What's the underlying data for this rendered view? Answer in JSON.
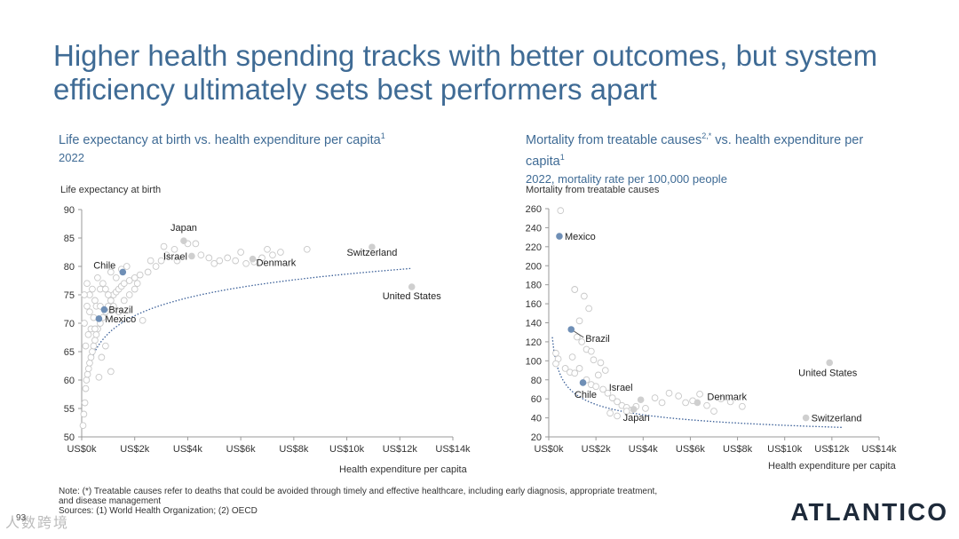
{
  "title_line1": "Higher health spending tracks with better outcomes, but system",
  "title_line2": "efficiency ultimately sets best performers apart",
  "left": {
    "heading": "Life expectancy at birth vs. health expenditure per capita",
    "heading_sup": "1",
    "subheading": "2022",
    "ylabel": "Life expectancy at birth",
    "xlabel": "Health expenditure per capita"
  },
  "right": {
    "heading": "Mortality from treatable causes",
    "heading_sup": "2,*",
    "heading_rest": " vs. health expenditure per",
    "heading_line2": "capita",
    "heading_line2_sup": "1",
    "subheading": "2022, mortality rate per 100,000 people",
    "ylabel": "Mortality from treatable causes",
    "xlabel": "Health expenditure per capita"
  },
  "note_line1": "Note: (*) Treatable causes refer to deaths that could be avoided through timely and effective healthcare, including early diagnosis, appropriate treatment,",
  "note_line2": "and disease management",
  "note_line3": "Sources: (1) World Health Organization; (2) OECD",
  "page_number": "93",
  "logo": "ATLANTICO",
  "watermark": "人数跨境",
  "colors": {
    "title": "#3f6b95",
    "highlight": "#6f8fb6",
    "label_gray": "#cfcfcf",
    "trend": "#3a5f98"
  },
  "chart_data": [
    {
      "type": "scatter",
      "xlabel": "Health expenditure per capita",
      "ylabel": "Life expectancy at birth",
      "xlim": [
        0,
        14000
      ],
      "ylim": [
        50,
        90
      ],
      "x_ticks": [
        "US$0k",
        "US$2k",
        "US$4k",
        "US$6k",
        "US$8k",
        "US$10k",
        "US$12k",
        "US$14k"
      ],
      "y_ticks": [
        "50",
        "55",
        "60",
        "65",
        "70",
        "75",
        "80",
        "85",
        "90"
      ],
      "trendline": "logarithmic",
      "labeled_points": [
        {
          "name": "Japan",
          "x": 3850,
          "y": 84.5,
          "style": "gray"
        },
        {
          "name": "Israel",
          "x": 4150,
          "y": 81.8,
          "style": "gray"
        },
        {
          "name": "Chile",
          "x": 1550,
          "y": 79.0,
          "style": "blue"
        },
        {
          "name": "Denmark",
          "x": 6450,
          "y": 81.3,
          "style": "gray"
        },
        {
          "name": "Switzerland",
          "x": 10950,
          "y": 83.4,
          "style": "gray"
        },
        {
          "name": "United States",
          "x": 12450,
          "y": 76.4,
          "style": "gray"
        },
        {
          "name": "Brazil",
          "x": 850,
          "y": 72.4,
          "style": "blue"
        },
        {
          "name": "Mexico",
          "x": 650,
          "y": 70.8,
          "style": "blue"
        }
      ],
      "points": [
        [
          50,
          52
        ],
        [
          80,
          54
        ],
        [
          120,
          56
        ],
        [
          150,
          58.5
        ],
        [
          180,
          60
        ],
        [
          220,
          61
        ],
        [
          260,
          62
        ],
        [
          300,
          63
        ],
        [
          350,
          64
        ],
        [
          400,
          65
        ],
        [
          450,
          66
        ],
        [
          500,
          67
        ],
        [
          550,
          68
        ],
        [
          600,
          69
        ],
        [
          700,
          70
        ],
        [
          800,
          71
        ],
        [
          900,
          72
        ],
        [
          1000,
          73
        ],
        [
          1100,
          74
        ],
        [
          1200,
          75
        ],
        [
          1300,
          75.5
        ],
        [
          1400,
          76
        ],
        [
          1500,
          76.5
        ],
        [
          1600,
          77
        ],
        [
          1800,
          77.5
        ],
        [
          2000,
          78
        ],
        [
          2200,
          78.5
        ],
        [
          2500,
          79
        ],
        [
          2800,
          80
        ],
        [
          3000,
          81
        ],
        [
          3200,
          82
        ],
        [
          3500,
          83
        ],
        [
          4000,
          84
        ],
        [
          4500,
          82
        ],
        [
          5000,
          80.5
        ],
        [
          5500,
          81.5
        ],
        [
          6000,
          82.5
        ],
        [
          6500,
          80.8
        ],
        [
          7000,
          83
        ],
        [
          7500,
          82.5
        ],
        [
          8500,
          83
        ],
        [
          100,
          70
        ],
        [
          200,
          73
        ],
        [
          300,
          75
        ],
        [
          400,
          76
        ],
        [
          500,
          74
        ],
        [
          600,
          78
        ],
        [
          700,
          76
        ],
        [
          800,
          77
        ],
        [
          1000,
          75
        ],
        [
          1200,
          73
        ],
        [
          1400,
          72
        ],
        [
          1600,
          74
        ],
        [
          1800,
          75
        ],
        [
          2000,
          76
        ],
        [
          2300,
          70.5
        ],
        [
          150,
          66
        ],
        [
          250,
          68
        ],
        [
          350,
          69
        ],
        [
          450,
          71
        ],
        [
          550,
          73
        ],
        [
          650,
          60.5
        ],
        [
          750,
          64
        ],
        [
          900,
          66
        ],
        [
          1100,
          61.5
        ],
        [
          100,
          75
        ],
        [
          200,
          77
        ],
        [
          300,
          72
        ],
        [
          500,
          69
        ],
        [
          700,
          73
        ],
        [
          900,
          76
        ],
        [
          1100,
          79
        ],
        [
          1300,
          78
        ],
        [
          1500,
          79.5
        ],
        [
          1700,
          80
        ],
        [
          2100,
          77
        ],
        [
          2600,
          81
        ],
        [
          3100,
          83.5
        ],
        [
          4300,
          84
        ],
        [
          5200,
          81
        ],
        [
          5800,
          81
        ],
        [
          6200,
          80.5
        ],
        [
          6800,
          81.5
        ],
        [
          7200,
          82
        ],
        [
          3600,
          81
        ],
        [
          4800,
          81.5
        ]
      ]
    },
    {
      "type": "scatter",
      "xlabel": "Health expenditure per capita",
      "ylabel": "Mortality from treatable causes",
      "xlim": [
        0,
        14000
      ],
      "ylim": [
        20,
        260
      ],
      "x_ticks": [
        "US$0k",
        "US$2k",
        "US$4k",
        "US$6k",
        "US$8k",
        "US$10k",
        "US$12k",
        "US$14k"
      ],
      "y_ticks": [
        "20",
        "40",
        "60",
        "80",
        "100",
        "120",
        "140",
        "160",
        "180",
        "200",
        "220",
        "240",
        "260"
      ],
      "trendline": "power",
      "labeled_points": [
        {
          "name": "Mexico",
          "x": 450,
          "y": 231,
          "style": "blue"
        },
        {
          "name": "Brazil",
          "x": 950,
          "y": 133,
          "style": "blue"
        },
        {
          "name": "Chile",
          "x": 1450,
          "y": 77,
          "style": "blue"
        },
        {
          "name": "Israel",
          "x": 3900,
          "y": 59,
          "style": "gray"
        },
        {
          "name": "Japan",
          "x": 3600,
          "y": 49,
          "style": "gray"
        },
        {
          "name": "Denmark",
          "x": 6300,
          "y": 56,
          "style": "gray"
        },
        {
          "name": "United States",
          "x": 11900,
          "y": 98,
          "style": "gray"
        },
        {
          "name": "Switzerland",
          "x": 10900,
          "y": 40,
          "style": "gray"
        }
      ],
      "points": [
        [
          500,
          258
        ],
        [
          1100,
          175
        ],
        [
          1300,
          142
        ],
        [
          1500,
          168
        ],
        [
          1700,
          155
        ],
        [
          1200,
          125
        ],
        [
          1400,
          120
        ],
        [
          1600,
          112
        ],
        [
          1800,
          110
        ],
        [
          1000,
          104
        ],
        [
          300,
          108
        ],
        [
          400,
          102
        ],
        [
          300,
          97
        ],
        [
          700,
          92
        ],
        [
          900,
          88
        ],
        [
          1100,
          87
        ],
        [
          1300,
          92
        ],
        [
          1600,
          80
        ],
        [
          1800,
          75
        ],
        [
          2000,
          73
        ],
        [
          2300,
          70
        ],
        [
          2500,
          66
        ],
        [
          2700,
          61
        ],
        [
          2900,
          57
        ],
        [
          3100,
          53
        ],
        [
          3300,
          51
        ],
        [
          3500,
          48
        ],
        [
          2600,
          45
        ],
        [
          2900,
          42
        ],
        [
          3300,
          47
        ],
        [
          3700,
          52
        ],
        [
          4100,
          50
        ],
        [
          4500,
          61
        ],
        [
          4800,
          56
        ],
        [
          5100,
          66
        ],
        [
          5500,
          63
        ],
        [
          5800,
          56
        ],
        [
          6100,
          58
        ],
        [
          6400,
          65
        ],
        [
          6700,
          53
        ],
        [
          7000,
          47
        ],
        [
          7300,
          60
        ],
        [
          7700,
          57
        ],
        [
          8200,
          52
        ],
        [
          2100,
          85
        ],
        [
          2400,
          90
        ],
        [
          1900,
          101
        ],
        [
          2200,
          98
        ],
        [
          1100,
          175
        ]
      ]
    }
  ]
}
